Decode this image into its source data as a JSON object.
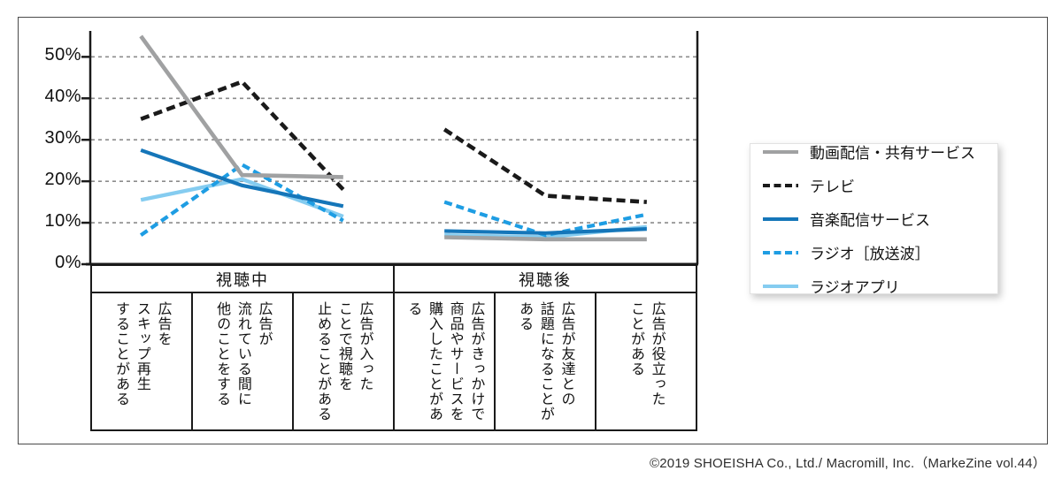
{
  "chart_data": {
    "type": "line",
    "unit": "%",
    "grid": "horizontal-dashed",
    "legend_position": "right",
    "y_axis": {
      "ticks": [
        "50%",
        "40%",
        "30%",
        "20%",
        "10%",
        "0%"
      ],
      "values": [
        50,
        40,
        30,
        20,
        10,
        0
      ],
      "range": [
        0,
        57
      ]
    },
    "group_headers": [
      {
        "label": "視聴中",
        "span": 3
      },
      {
        "label": "視聴後",
        "span": 3
      }
    ],
    "categories": [
      "広告を\nスキップ再生\nすることがある",
      "広告が\n流れている間に\n他のことをする",
      "広告が入った\nことで視聴を\n止めることがある",
      "広告がきっかけで\n商品やサービスを\n購入したことがある",
      "広告が友達との\n話題になることが\nある",
      "広告が役立った\nことがある"
    ],
    "series": [
      {
        "name": "動画配信・共有サービス",
        "color": "#a0a1a2",
        "style": "solid",
        "dash": null,
        "values": [
          55,
          21.5,
          21,
          6.5,
          6,
          6
        ]
      },
      {
        "name": "テレビ",
        "color": "#1a1a1a",
        "style": "dashed",
        "dash": "10,5.5",
        "values": [
          35,
          44,
          18,
          32.5,
          16.5,
          15
        ]
      },
      {
        "name": "音楽配信サービス",
        "color": "#1576b9",
        "style": "solid",
        "dash": null,
        "values": [
          27.5,
          19,
          14,
          8,
          7.5,
          8.5
        ]
      },
      {
        "name": "ラジオ［放送波］",
        "color": "#1e9de3",
        "style": "dashed",
        "dash": "9,5",
        "values": [
          7,
          24,
          10.5,
          15,
          7,
          12
        ]
      },
      {
        "name": "ラジオアプリ",
        "color": "#85ccf0",
        "style": "solid",
        "dash": null,
        "values": [
          15.5,
          20.5,
          11.5,
          7,
          6.5,
          9
        ]
      }
    ]
  },
  "footer": {
    "credit": "©2019 SHOEISHA Co., Ltd./ Macromill, Inc.（MarkeZine vol.44）"
  }
}
